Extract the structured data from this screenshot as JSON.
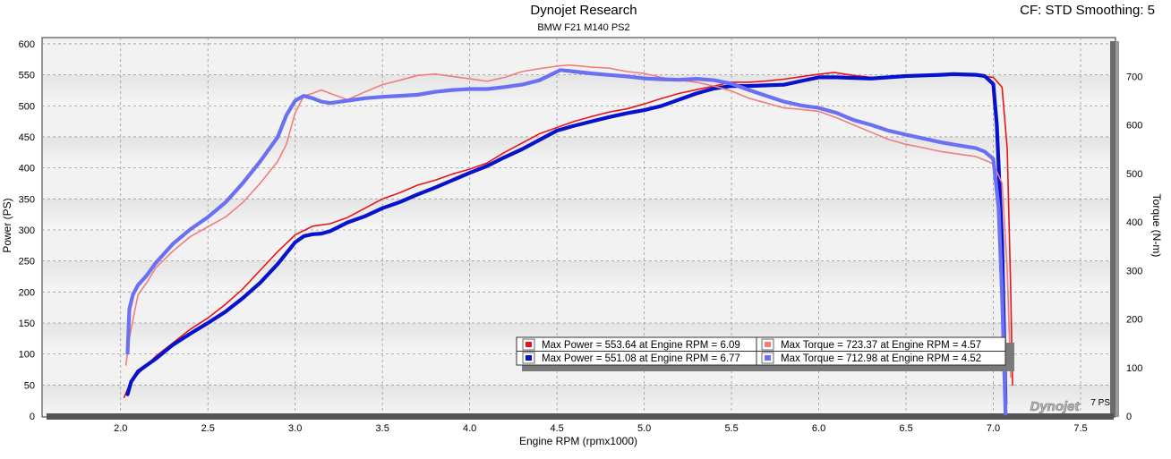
{
  "chart_data": {
    "type": "line",
    "title": "Dynojet Research",
    "subtitle": "BMW F21 M140 PS2",
    "header_right": "CF: STD Smoothing: 5",
    "xlabel": "Engine RPM (rpmx1000)",
    "ylabel": "Power (PS)",
    "y2label": "Torque (N-m)",
    "xlim": [
      1.55,
      7.7
    ],
    "ylim": [
      0,
      610
    ],
    "y2lim": [
      0,
      780
    ],
    "x_ticks": [
      "2.0",
      "2.5",
      "3.0",
      "3.5",
      "4.0",
      "4.5",
      "5.0",
      "5.5",
      "6.0",
      "6.5",
      "7.0",
      "7.5"
    ],
    "y_ticks": [
      "0",
      "50",
      "100",
      "150",
      "200",
      "250",
      "300",
      "350",
      "400",
      "450",
      "500",
      "550",
      "600"
    ],
    "y2_ticks": [
      "0",
      "100",
      "200",
      "300",
      "400",
      "500",
      "600",
      "700"
    ],
    "corner_label": "7 PS",
    "watermark": "Dynojet",
    "series": [
      {
        "name": "Max Power = 553.64 at Engine RPM = 6.09",
        "axis": "left",
        "color": "#e8141b",
        "width": 1.6,
        "x": [
          2.02,
          2.05,
          2.1,
          2.2,
          2.3,
          2.4,
          2.5,
          2.6,
          2.7,
          2.8,
          2.9,
          3.0,
          3.1,
          3.2,
          3.3,
          3.4,
          3.5,
          3.6,
          3.7,
          3.8,
          3.9,
          4.0,
          4.1,
          4.2,
          4.3,
          4.4,
          4.5,
          4.6,
          4.7,
          4.8,
          4.9,
          5.0,
          5.1,
          5.2,
          5.3,
          5.4,
          5.5,
          5.6,
          5.7,
          5.8,
          5.9,
          6.0,
          6.09,
          6.2,
          6.3,
          6.4,
          6.5,
          6.6,
          6.7,
          6.8,
          6.9,
          7.0,
          7.05,
          7.08,
          7.1,
          7.11
        ],
        "values": [
          30,
          50,
          68,
          96,
          118,
          140,
          158,
          180,
          205,
          235,
          265,
          292,
          306,
          310,
          320,
          335,
          350,
          360,
          372,
          380,
          390,
          398,
          408,
          425,
          440,
          455,
          465,
          475,
          483,
          490,
          495,
          503,
          512,
          520,
          526,
          532,
          538,
          538,
          540,
          543,
          547,
          551,
          553.64,
          549,
          546,
          547,
          548,
          549,
          551,
          550,
          549,
          546,
          530,
          430,
          200,
          50
        ]
      },
      {
        "name": "Max Power = 551.08 at Engine RPM = 6.77",
        "axis": "left",
        "color": "#0712cc",
        "width": 4.2,
        "x": [
          2.04,
          2.06,
          2.1,
          2.2,
          2.3,
          2.4,
          2.5,
          2.6,
          2.7,
          2.8,
          2.9,
          3.0,
          3.05,
          3.1,
          3.15,
          3.2,
          3.3,
          3.4,
          3.5,
          3.6,
          3.7,
          3.8,
          3.9,
          4.0,
          4.1,
          4.2,
          4.3,
          4.4,
          4.5,
          4.6,
          4.7,
          4.8,
          4.9,
          5.0,
          5.1,
          5.2,
          5.3,
          5.4,
          5.5,
          5.6,
          5.7,
          5.8,
          5.9,
          6.0,
          6.1,
          6.2,
          6.3,
          6.4,
          6.5,
          6.6,
          6.7,
          6.77,
          6.9,
          6.95,
          7.0,
          7.02,
          7.05,
          7.07
        ],
        "values": [
          35,
          55,
          72,
          92,
          115,
          133,
          150,
          168,
          190,
          215,
          245,
          280,
          290,
          293,
          294,
          298,
          312,
          322,
          335,
          345,
          357,
          368,
          380,
          392,
          403,
          417,
          430,
          445,
          460,
          468,
          475,
          482,
          488,
          493,
          500,
          510,
          520,
          528,
          532,
          532,
          533,
          534,
          540,
          546,
          546,
          545,
          544,
          546,
          548,
          549,
          550,
          551.08,
          550,
          548,
          535,
          470,
          280,
          20
        ]
      },
      {
        "name": "Max Torque = 723.37 at Engine RPM = 4.57",
        "axis": "right",
        "color": "#f07e7e",
        "width": 1.6,
        "x": [
          2.03,
          2.05,
          2.08,
          2.1,
          2.15,
          2.2,
          2.3,
          2.4,
          2.5,
          2.6,
          2.7,
          2.8,
          2.9,
          2.95,
          3.0,
          3.05,
          3.1,
          3.15,
          3.2,
          3.3,
          3.4,
          3.5,
          3.6,
          3.7,
          3.8,
          3.9,
          4.0,
          4.1,
          4.2,
          4.3,
          4.4,
          4.5,
          4.57,
          4.7,
          4.8,
          4.9,
          5.0,
          5.1,
          5.2,
          5.3,
          5.4,
          5.5,
          5.6,
          5.7,
          5.8,
          5.9,
          6.0,
          6.1,
          6.2,
          6.3,
          6.4,
          6.5,
          6.6,
          6.7,
          6.8,
          6.9,
          7.0,
          7.05,
          7.08,
          7.1
        ],
        "values": [
          105,
          160,
          215,
          250,
          275,
          305,
          340,
          370,
          390,
          410,
          440,
          480,
          525,
          560,
          625,
          660,
          665,
          672,
          665,
          652,
          668,
          683,
          692,
          702,
          705,
          700,
          695,
          690,
          698,
          710,
          716,
          721,
          723.37,
          719,
          717,
          710,
          706,
          698,
          692,
          688,
          680,
          670,
          655,
          645,
          635,
          632,
          628,
          615,
          600,
          585,
          570,
          560,
          553,
          545,
          540,
          535,
          520,
          480,
          300,
          80
        ]
      },
      {
        "name": "Max Torque = 712.98 at Engine RPM = 4.52",
        "axis": "right",
        "color": "#6b70f2",
        "width": 4.2,
        "x": [
          2.04,
          2.05,
          2.07,
          2.1,
          2.15,
          2.2,
          2.3,
          2.4,
          2.5,
          2.6,
          2.7,
          2.8,
          2.9,
          2.95,
          3.0,
          3.05,
          3.1,
          3.15,
          3.2,
          3.3,
          3.4,
          3.5,
          3.6,
          3.7,
          3.8,
          3.9,
          4.0,
          4.1,
          4.2,
          4.3,
          4.4,
          4.52,
          4.6,
          4.7,
          4.8,
          4.9,
          5.0,
          5.1,
          5.2,
          5.3,
          5.4,
          5.5,
          5.6,
          5.7,
          5.8,
          5.9,
          6.0,
          6.1,
          6.2,
          6.3,
          6.4,
          6.5,
          6.6,
          6.7,
          6.8,
          6.9,
          6.95,
          7.0,
          7.03,
          7.05,
          7.07
        ],
        "values": [
          130,
          220,
          250,
          270,
          290,
          315,
          355,
          385,
          410,
          440,
          480,
          525,
          575,
          620,
          650,
          660,
          655,
          648,
          645,
          650,
          655,
          658,
          660,
          662,
          668,
          672,
          674,
          674,
          678,
          683,
          692,
          712.98,
          710,
          706,
          703,
          700,
          696,
          694,
          693,
          695,
          692,
          685,
          672,
          660,
          648,
          640,
          635,
          625,
          610,
          600,
          588,
          580,
          572,
          564,
          558,
          552,
          545,
          530,
          430,
          250,
          5
        ]
      }
    ]
  }
}
